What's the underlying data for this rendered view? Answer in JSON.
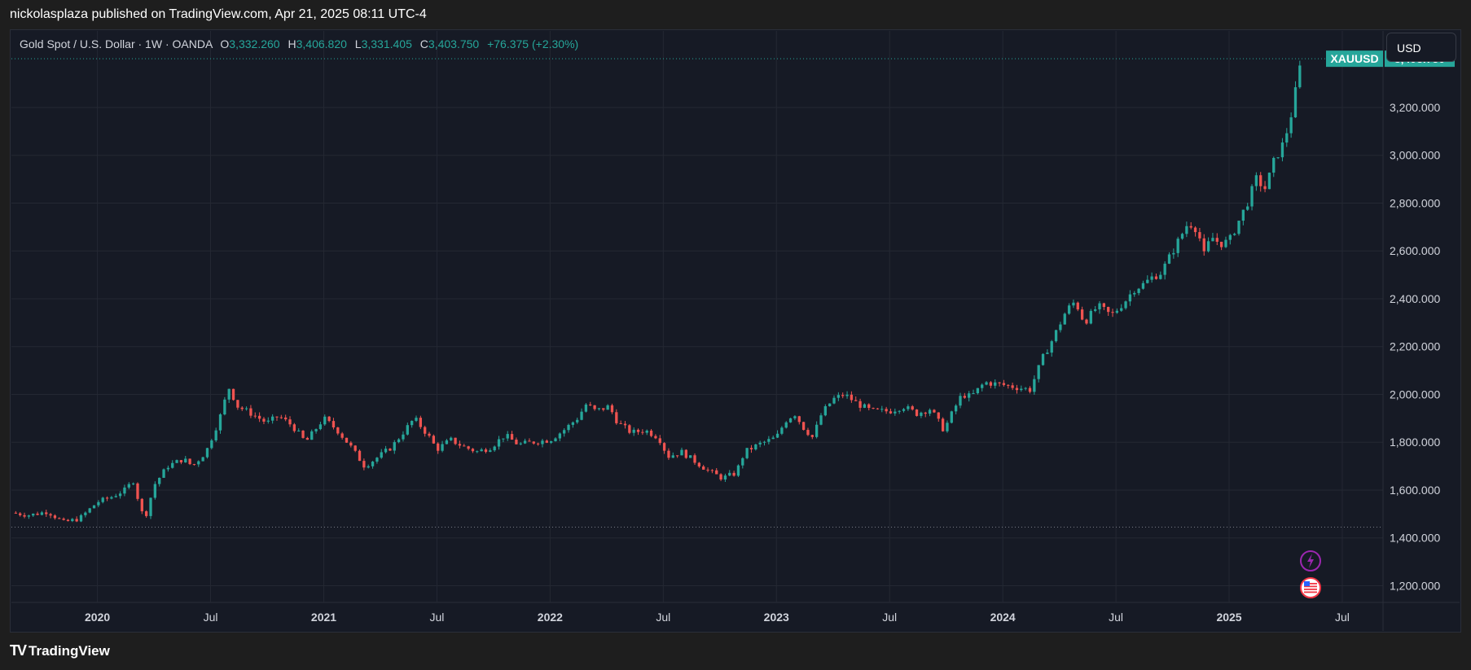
{
  "publisher_line": "nickolasplaza published on TradingView.com, Apr 21, 2025 08:11 UTC-4",
  "legend": {
    "symbol": "Gold Spot / U.S. Dollar · 1W · OANDA",
    "o_label": "O",
    "o_value": "3,332.260",
    "h_label": "H",
    "h_value": "3,406.820",
    "l_label": "L",
    "l_value": "3,331.405",
    "c_label": "C",
    "c_value": "3,403.750",
    "change": "+76.375 (+2.30%)"
  },
  "currency_button": "USD",
  "price_tag": {
    "symbol": "XAUUSD",
    "value": "3,403.750"
  },
  "footer": {
    "logo_mark": "TV",
    "brand": "TradingView"
  },
  "colors": {
    "up": "#26a69a",
    "down": "#ef5350",
    "background": "#161a25",
    "grid": "#242833",
    "event_lightning": "#9c27b0",
    "event_flag": "#f23645"
  },
  "event_icons": [
    "lightning-icon",
    "us-flag-icon"
  ],
  "chart_data": {
    "type": "candlestick",
    "title": "Gold Spot / U.S. Dollar · 1W · OANDA",
    "symbol": "XAUUSD",
    "ylim": [
      1130,
      3520
    ],
    "xlim": [
      2019.62,
      2025.68
    ],
    "y_ticks": [
      1200,
      1400,
      1600,
      1800,
      2000,
      2200,
      2400,
      2600,
      2800,
      3000,
      3200
    ],
    "y_tick_labels": [
      "1,200.000",
      "1,400.000",
      "1,600.000",
      "1,800.000",
      "2,000.000",
      "2,200.000",
      "2,400.000",
      "2,600.000",
      "2,800.000",
      "3,000.000",
      "3,200.000"
    ],
    "x_ticks": [
      {
        "label": "2020",
        "t": 2020.0,
        "bold": true
      },
      {
        "label": "Jul",
        "t": 2020.5,
        "bold": false
      },
      {
        "label": "2021",
        "t": 2021.0,
        "bold": true
      },
      {
        "label": "Jul",
        "t": 2021.5,
        "bold": false
      },
      {
        "label": "2022",
        "t": 2022.0,
        "bold": true
      },
      {
        "label": "Jul",
        "t": 2022.5,
        "bold": false
      },
      {
        "label": "2023",
        "t": 2023.0,
        "bold": true
      },
      {
        "label": "Jul",
        "t": 2023.5,
        "bold": false
      },
      {
        "label": "2024",
        "t": 2024.0,
        "bold": true
      },
      {
        "label": "Jul",
        "t": 2024.5,
        "bold": false
      },
      {
        "label": "2025",
        "t": 2025.0,
        "bold": true
      },
      {
        "label": "Jul",
        "t": 2025.5,
        "bold": false
      }
    ],
    "last_price": 3403.75,
    "low_line": 1445,
    "close_path": [
      [
        2019.62,
        1505
      ],
      [
        2019.7,
        1495
      ],
      [
        2019.78,
        1510
      ],
      [
        2019.85,
        1465
      ],
      [
        2019.92,
        1480
      ],
      [
        2020.0,
        1550
      ],
      [
        2020.06,
        1570
      ],
      [
        2020.12,
        1600
      ],
      [
        2020.16,
        1640
      ],
      [
        2020.19,
        1520
      ],
      [
        2020.21,
        1480
      ],
      [
        2020.25,
        1620
      ],
      [
        2020.31,
        1700
      ],
      [
        2020.38,
        1730
      ],
      [
        2020.42,
        1700
      ],
      [
        2020.48,
        1760
      ],
      [
        2020.54,
        1900
      ],
      [
        2020.58,
        2030
      ],
      [
        2020.62,
        1950
      ],
      [
        2020.68,
        1920
      ],
      [
        2020.75,
        1880
      ],
      [
        2020.8,
        1910
      ],
      [
        2020.86,
        1870
      ],
      [
        2020.92,
        1800
      ],
      [
        2021.0,
        1900
      ],
      [
        2021.06,
        1850
      ],
      [
        2021.12,
        1780
      ],
      [
        2021.18,
        1700
      ],
      [
        2021.22,
        1725
      ],
      [
        2021.3,
        1780
      ],
      [
        2021.35,
        1840
      ],
      [
        2021.4,
        1900
      ],
      [
        2021.46,
        1830
      ],
      [
        2021.5,
        1770
      ],
      [
        2021.56,
        1810
      ],
      [
        2021.62,
        1780
      ],
      [
        2021.68,
        1760
      ],
      [
        2021.74,
        1780
      ],
      [
        2021.8,
        1830
      ],
      [
        2021.86,
        1790
      ],
      [
        2021.92,
        1800
      ],
      [
        2022.0,
        1810
      ],
      [
        2022.06,
        1850
      ],
      [
        2022.12,
        1900
      ],
      [
        2022.16,
        1960
      ],
      [
        2022.2,
        1930
      ],
      [
        2022.26,
        1950
      ],
      [
        2022.3,
        1880
      ],
      [
        2022.36,
        1840
      ],
      [
        2022.42,
        1850
      ],
      [
        2022.48,
        1820
      ],
      [
        2022.52,
        1740
      ],
      [
        2022.58,
        1760
      ],
      [
        2022.64,
        1720
      ],
      [
        2022.7,
        1680
      ],
      [
        2022.76,
        1650
      ],
      [
        2022.82,
        1670
      ],
      [
        2022.86,
        1760
      ],
      [
        2022.92,
        1790
      ],
      [
        2023.0,
        1820
      ],
      [
        2023.04,
        1890
      ],
      [
        2023.08,
        1920
      ],
      [
        2023.12,
        1860
      ],
      [
        2023.16,
        1820
      ],
      [
        2023.2,
        1920
      ],
      [
        2023.25,
        1980
      ],
      [
        2023.3,
        2000
      ],
      [
        2023.36,
        1960
      ],
      [
        2023.42,
        1930
      ],
      [
        2023.5,
        1930
      ],
      [
        2023.56,
        1950
      ],
      [
        2023.62,
        1920
      ],
      [
        2023.68,
        1940
      ],
      [
        2023.74,
        1850
      ],
      [
        2023.78,
        1930
      ],
      [
        2023.82,
        2000
      ],
      [
        2023.86,
        1990
      ],
      [
        2023.92,
        2050
      ],
      [
        2024.0,
        2040
      ],
      [
        2024.06,
        2030
      ],
      [
        2024.12,
        2020
      ],
      [
        2024.18,
        2160
      ],
      [
        2024.22,
        2230
      ],
      [
        2024.28,
        2350
      ],
      [
        2024.32,
        2390
      ],
      [
        2024.36,
        2300
      ],
      [
        2024.42,
        2370
      ],
      [
        2024.48,
        2330
      ],
      [
        2024.54,
        2390
      ],
      [
        2024.58,
        2440
      ],
      [
        2024.62,
        2460
      ],
      [
        2024.66,
        2490
      ],
      [
        2024.7,
        2510
      ],
      [
        2024.74,
        2580
      ],
      [
        2024.78,
        2650
      ],
      [
        2024.82,
        2720
      ],
      [
        2024.86,
        2690
      ],
      [
        2024.89,
        2580
      ],
      [
        2024.92,
        2660
      ],
      [
        2024.96,
        2630
      ],
      [
        2025.0,
        2640
      ],
      [
        2025.04,
        2720
      ],
      [
        2025.08,
        2800
      ],
      [
        2025.12,
        2900
      ],
      [
        2025.16,
        2860
      ],
      [
        2025.2,
        2980
      ],
      [
        2025.24,
        3050
      ],
      [
        2025.27,
        3150
      ],
      [
        2025.3,
        3300
      ],
      [
        2025.32,
        3404
      ]
    ]
  }
}
